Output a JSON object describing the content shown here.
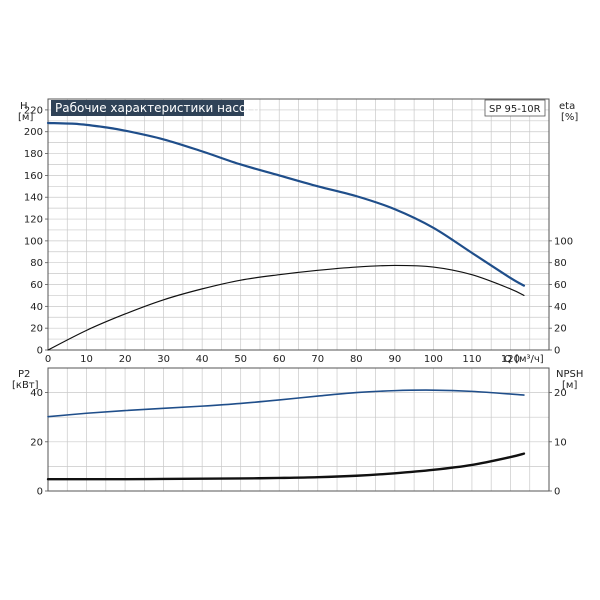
{
  "chart_data": [
    {
      "type": "line",
      "title": "Рабочие характеристики насоса",
      "model": "SP 95-10R",
      "left_axis": {
        "label_top": "H",
        "label_unit": "[м]",
        "range": [
          0,
          230
        ],
        "ticks": [
          0,
          20,
          40,
          60,
          80,
          100,
          120,
          140,
          160,
          180,
          200,
          220
        ]
      },
      "right_axis": {
        "label_top": "eta",
        "label_unit": "[%]",
        "range": [
          0,
          230
        ],
        "ticks": [
          0,
          20,
          40,
          60,
          80,
          100
        ]
      },
      "x_axis": {
        "label": "Q [м³/ч]",
        "range": [
          0,
          130
        ],
        "ticks": [
          0,
          10,
          20,
          30,
          40,
          50,
          60,
          70,
          80,
          90,
          100,
          110,
          120
        ]
      },
      "grid": true,
      "series": [
        {
          "key": "head",
          "color": "#1f4e8a",
          "width": 2.2,
          "axis": "left",
          "x": [
            0,
            8,
            15,
            20,
            30,
            40,
            50,
            60,
            70,
            80,
            90,
            100,
            110,
            120,
            123.5
          ],
          "y": [
            208,
            207,
            204,
            201,
            193,
            182,
            170,
            160,
            150,
            141,
            129,
            112,
            89,
            66,
            59
          ]
        },
        {
          "key": "efficiency",
          "color": "#111111",
          "width": 1.2,
          "axis": "right",
          "dashed_start": 8,
          "x": [
            0,
            10,
            20,
            30,
            40,
            50,
            60,
            70,
            80,
            90,
            100,
            110,
            120,
            123.5
          ],
          "y": [
            0,
            18,
            33,
            46,
            56,
            64,
            69,
            73,
            76,
            77.5,
            76,
            69,
            56,
            50
          ]
        }
      ]
    },
    {
      "type": "line",
      "left_axis": {
        "label_top": "P2",
        "label_unit": "[кВт]",
        "range": [
          0,
          50
        ],
        "ticks": [
          0,
          20,
          40
        ]
      },
      "right_axis": {
        "label_top": "NPSH",
        "label_unit": "[м]",
        "range": [
          0,
          25
        ],
        "ticks": [
          0,
          10,
          20
        ]
      },
      "x_axis": {
        "range": [
          0,
          130
        ]
      },
      "grid": true,
      "series": [
        {
          "key": "power_p2",
          "color": "#1f4e8a",
          "width": 1.6,
          "axis": "left",
          "x": [
            0,
            10,
            20,
            30,
            40,
            50,
            60,
            70,
            80,
            90,
            100,
            110,
            123.5
          ],
          "y": [
            30.2,
            31.6,
            32.7,
            33.6,
            34.5,
            35.6,
            37.0,
            38.6,
            40.0,
            40.8,
            41.0,
            40.5,
            39.0
          ]
        },
        {
          "key": "npsh",
          "color": "#111111",
          "width": 2.4,
          "axis": "right",
          "dashed_start": 9,
          "x": [
            0,
            9,
            20,
            30,
            40,
            50,
            60,
            70,
            80,
            90,
            100,
            110,
            120,
            123.5
          ],
          "y": [
            2.4,
            2.4,
            2.4,
            2.45,
            2.5,
            2.55,
            2.65,
            2.8,
            3.1,
            3.6,
            4.3,
            5.3,
            6.9,
            7.6
          ]
        }
      ]
    }
  ]
}
